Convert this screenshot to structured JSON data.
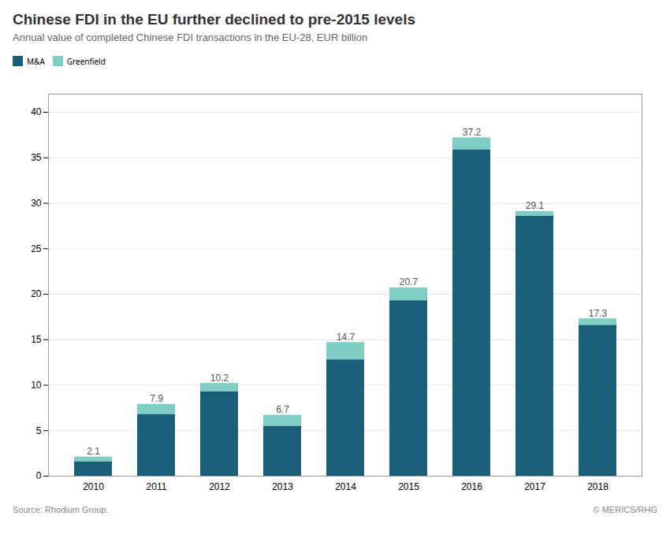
{
  "chart_data": {
    "type": "bar",
    "stacked": true,
    "title": "Chinese FDI in the EU further declined to pre-2015 levels",
    "subtitle": "Annual value of completed Chinese FDI transactions in the EU-28, EUR billion",
    "source": "Source: Rhodium Group.",
    "annotations": [
      "© MERICS/RHG"
    ],
    "categories": [
      "2010",
      "2011",
      "2012",
      "2013",
      "2014",
      "2015",
      "2016",
      "2017",
      "2018"
    ],
    "series": [
      {
        "name": "M&A",
        "color": "#1a5f7a",
        "values": [
          1.6,
          6.8,
          9.3,
          5.5,
          12.8,
          19.3,
          35.9,
          28.6,
          16.6
        ]
      },
      {
        "name": "Greenfield",
        "color": "#7ecec4",
        "values": [
          0.5,
          1.1,
          0.9,
          1.2,
          1.9,
          1.4,
          1.3,
          0.5,
          0.7
        ]
      }
    ],
    "totals": [
      2.1,
      7.9,
      10.2,
      6.7,
      14.7,
      20.7,
      37.2,
      29.1,
      17.3
    ],
    "ylim": [
      0,
      42
    ],
    "yticks": [
      0,
      5,
      10,
      15,
      20,
      25,
      30,
      35,
      40
    ],
    "grid": true,
    "legend": "top-left"
  }
}
